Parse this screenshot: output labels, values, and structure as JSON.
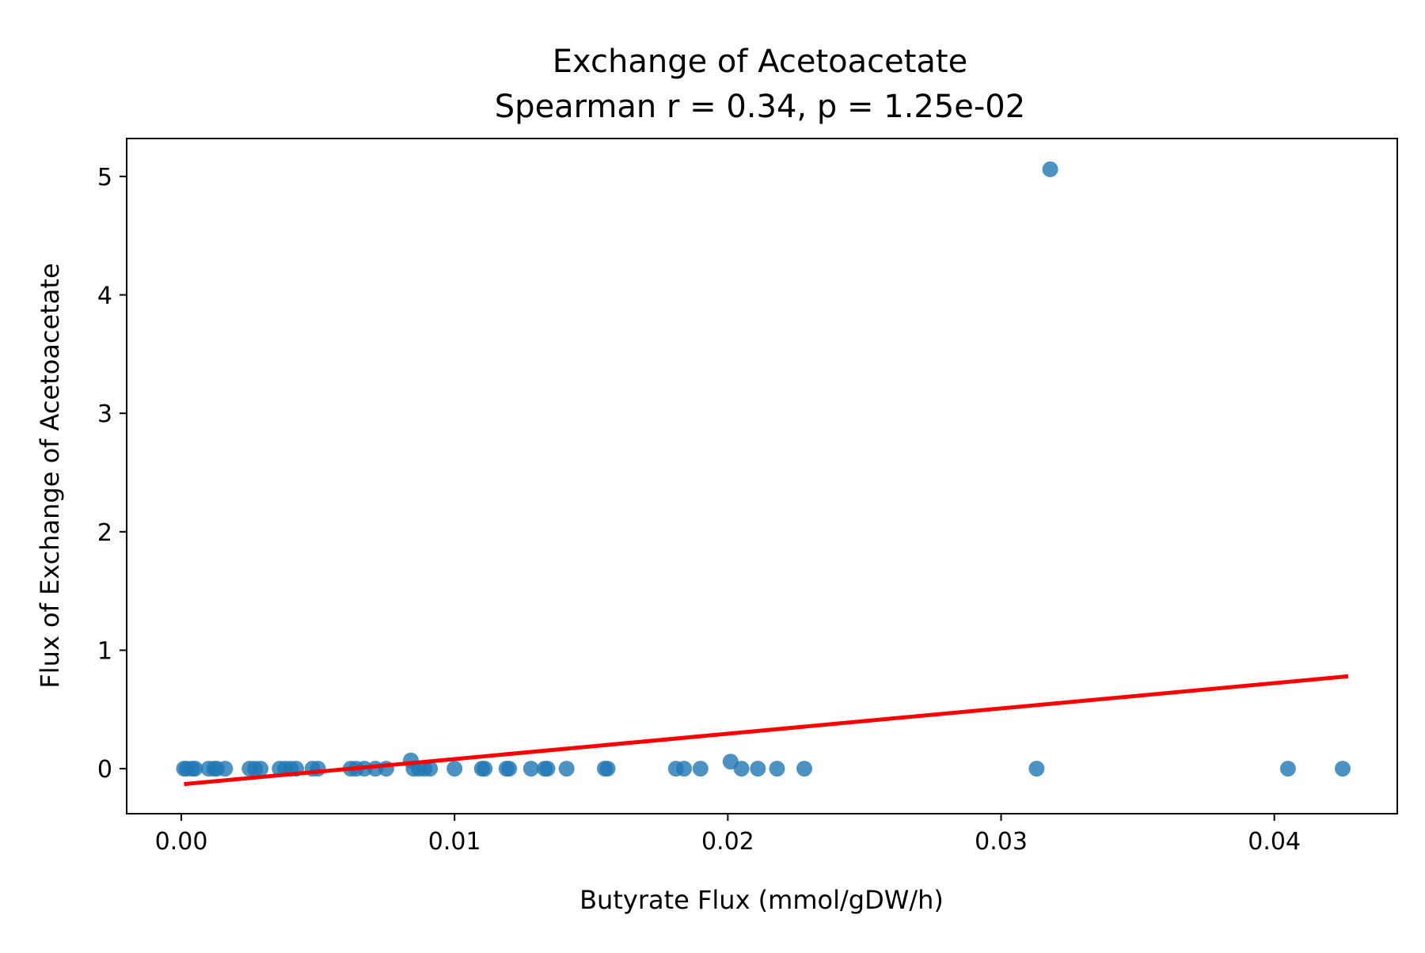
{
  "chart_data": {
    "type": "scatter",
    "title": "Exchange of Acetoacetate",
    "subtitle": "Spearman r = 0.34, p = 1.25e-02",
    "xlabel": "Butyrate Flux (mmol/gDW/h)",
    "ylabel": "Flux of Exchange of Acetoacetate",
    "xlim": [
      -0.002,
      0.0445
    ],
    "ylim": [
      -0.38,
      5.32
    ],
    "xticks": [
      0.0,
      0.01,
      0.02,
      0.03,
      0.04
    ],
    "xtick_labels": [
      "0.00",
      "0.01",
      "0.02",
      "0.03",
      "0.04"
    ],
    "yticks": [
      0,
      1,
      2,
      3,
      4,
      5
    ],
    "ytick_labels": [
      "0",
      "1",
      "2",
      "3",
      "4",
      "5"
    ],
    "grid": false,
    "legend": "none",
    "colors": {
      "points": "#1f77b4",
      "fit_line": "#ff0000"
    },
    "series": [
      {
        "kind": "points",
        "x": [
          0.0001,
          0.0002,
          0.0004,
          0.0005,
          0.001,
          0.0012,
          0.0013,
          0.0016,
          0.0025,
          0.0027,
          0.0029,
          0.0036,
          0.0038,
          0.004,
          0.0042,
          0.0048,
          0.005,
          0.0062,
          0.0064,
          0.0067,
          0.0071,
          0.0075,
          0.0084,
          0.0085,
          0.0087,
          0.0089,
          0.0091,
          0.01,
          0.011,
          0.0111,
          0.0119,
          0.012,
          0.0128,
          0.0133,
          0.0134,
          0.0141,
          0.0155,
          0.0156,
          0.0181,
          0.0184,
          0.019,
          0.0201,
          0.0205,
          0.0211,
          0.0218,
          0.0228,
          0.0313,
          0.0318,
          0.0405,
          0.0425
        ],
        "y": [
          0,
          0,
          0,
          0,
          0,
          0,
          0,
          0,
          0,
          0,
          0,
          0,
          0,
          0,
          0,
          0,
          0,
          0,
          0,
          0,
          0,
          0,
          0.07,
          0,
          0,
          0,
          0,
          0,
          0,
          0,
          0,
          0,
          0,
          0,
          0,
          0,
          0,
          0,
          0,
          0,
          0,
          0.06,
          0,
          0,
          0,
          0,
          0,
          5.06,
          0,
          0
        ]
      },
      {
        "kind": "fit_line",
        "x": [
          0.0001,
          0.0427
        ],
        "y": [
          -0.13,
          0.78
        ]
      }
    ]
  }
}
